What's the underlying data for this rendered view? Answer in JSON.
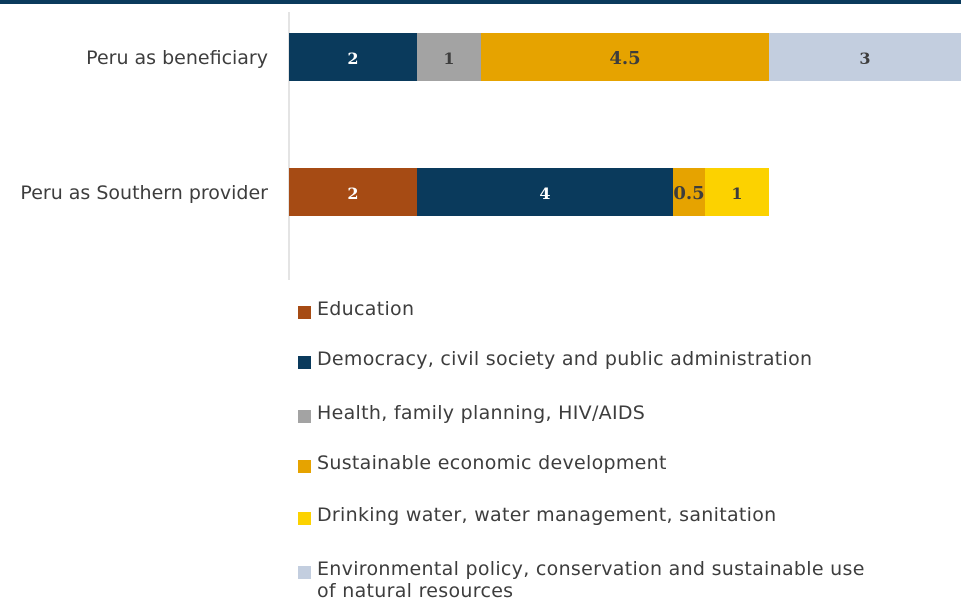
{
  "chart_data": {
    "type": "bar",
    "orientation": "horizontal",
    "stacked": true,
    "categories": [
      "Peru as beneficiary",
      "Peru as Southern provider"
    ],
    "series": [
      {
        "name": "Education",
        "color": "#a64b14",
        "values": [
          0,
          2
        ]
      },
      {
        "name": "Democracy, civil society and public administration",
        "color": "#0a3a5c",
        "values": [
          2,
          4
        ]
      },
      {
        "name": "Health, family planning, HIV/AIDS",
        "color": "#a3a3a3",
        "values": [
          1,
          0
        ]
      },
      {
        "name": "Sustainable economic development",
        "color": "#e6a300",
        "values": [
          4.5,
          0.5
        ]
      },
      {
        "name": "Drinking water, water management, sanitation",
        "color": "#fcd200",
        "values": [
          0,
          1
        ]
      },
      {
        "name": "Environmental policy, conservation and sustainable use of natural resources",
        "color": "#c3cedf",
        "values": [
          3,
          0
        ]
      }
    ],
    "data_labels": [
      {
        "category": "Peru as beneficiary",
        "labels": [
          "",
          "2",
          "1",
          "4.5",
          "",
          "3"
        ]
      },
      {
        "category": "Peru as Southern provider",
        "labels": [
          "2",
          "4",
          "",
          "0.5",
          "1",
          ""
        ]
      }
    ],
    "xlim": [
      0,
      10.5
    ],
    "grid": false,
    "legend_position": "bottom"
  }
}
